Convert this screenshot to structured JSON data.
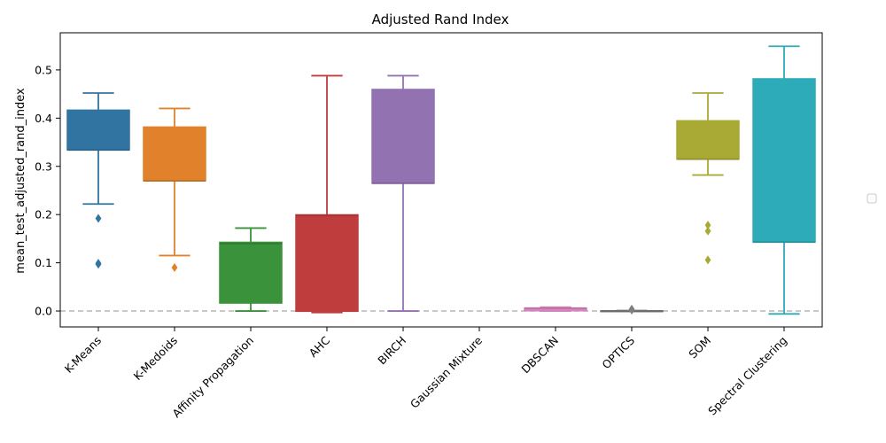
{
  "chart_data": {
    "type": "box",
    "title": "Adjusted Rand Index",
    "xlabel": "",
    "ylabel": "mean_test_adjusted_rand_index",
    "ylim": [
      -0.033,
      0.577
    ],
    "yticks": [
      "0.0",
      "0.1",
      "0.2",
      "0.3",
      "0.4",
      "0.5"
    ],
    "reference_line": {
      "y": 0.0,
      "style": "dashed",
      "color": "#b5b5b5"
    },
    "grid": false,
    "legend": {
      "position": "right",
      "entries": []
    },
    "categories": [
      "K-Means",
      "K-Medoids",
      "Affinity Propagation",
      "AHC",
      "BIRCH",
      "Gaussian Mixture",
      "DBSCAN",
      "OPTICS",
      "SOM",
      "Spectral Clustering"
    ],
    "boxes": [
      {
        "name": "K-Means",
        "color": "#3274a1",
        "whisker_low": 0.222,
        "q1": 0.334,
        "median": 0.334,
        "q3": 0.417,
        "whisker_high": 0.452,
        "outliers": [
          0.192,
          0.099,
          0.097
        ]
      },
      {
        "name": "K-Medoids",
        "color": "#e1812c",
        "whisker_low": 0.115,
        "q1": 0.27,
        "median": 0.27,
        "q3": 0.382,
        "whisker_high": 0.42,
        "outliers": [
          0.09
        ]
      },
      {
        "name": "Affinity Propagation",
        "color": "#3a923a",
        "whisker_low": 0.0,
        "q1": 0.016,
        "median": 0.14,
        "q3": 0.143,
        "whisker_high": 0.172,
        "outliers": []
      },
      {
        "name": "AHC",
        "color": "#c03d3e",
        "whisker_low": -0.003,
        "q1": -0.001,
        "median": 0.198,
        "q3": 0.2,
        "whisker_high": 0.488,
        "outliers": []
      },
      {
        "name": "BIRCH",
        "color": "#9372b2",
        "whisker_low": 0.0,
        "q1": 0.265,
        "median": 0.265,
        "q3": 0.46,
        "whisker_high": 0.488,
        "outliers": []
      },
      {
        "name": "Gaussian Mixture",
        "color": "#845b53",
        "empty": true
      },
      {
        "name": "DBSCAN",
        "color": "#d684bd",
        "whisker_low": 0.0,
        "q1": 0.0,
        "median": 0.006,
        "q3": 0.006,
        "whisker_high": 0.008,
        "outliers": []
      },
      {
        "name": "OPTICS",
        "color": "#7f7f7f",
        "whisker_low": 0.0,
        "q1": 0.0,
        "median": 0.0,
        "q3": 0.001,
        "whisker_high": 0.001,
        "outliers": [
          0.004,
          0.002
        ]
      },
      {
        "name": "SOM",
        "color": "#a9aa35",
        "whisker_low": 0.282,
        "q1": 0.315,
        "median": 0.315,
        "q3": 0.395,
        "whisker_high": 0.452,
        "outliers": [
          0.178,
          0.166,
          0.106
        ]
      },
      {
        "name": "Spectral Clustering",
        "color": "#2eabb8",
        "whisker_low": -0.006,
        "q1": 0.143,
        "median": 0.143,
        "q3": 0.482,
        "whisker_high": 0.549,
        "outliers": []
      }
    ]
  }
}
